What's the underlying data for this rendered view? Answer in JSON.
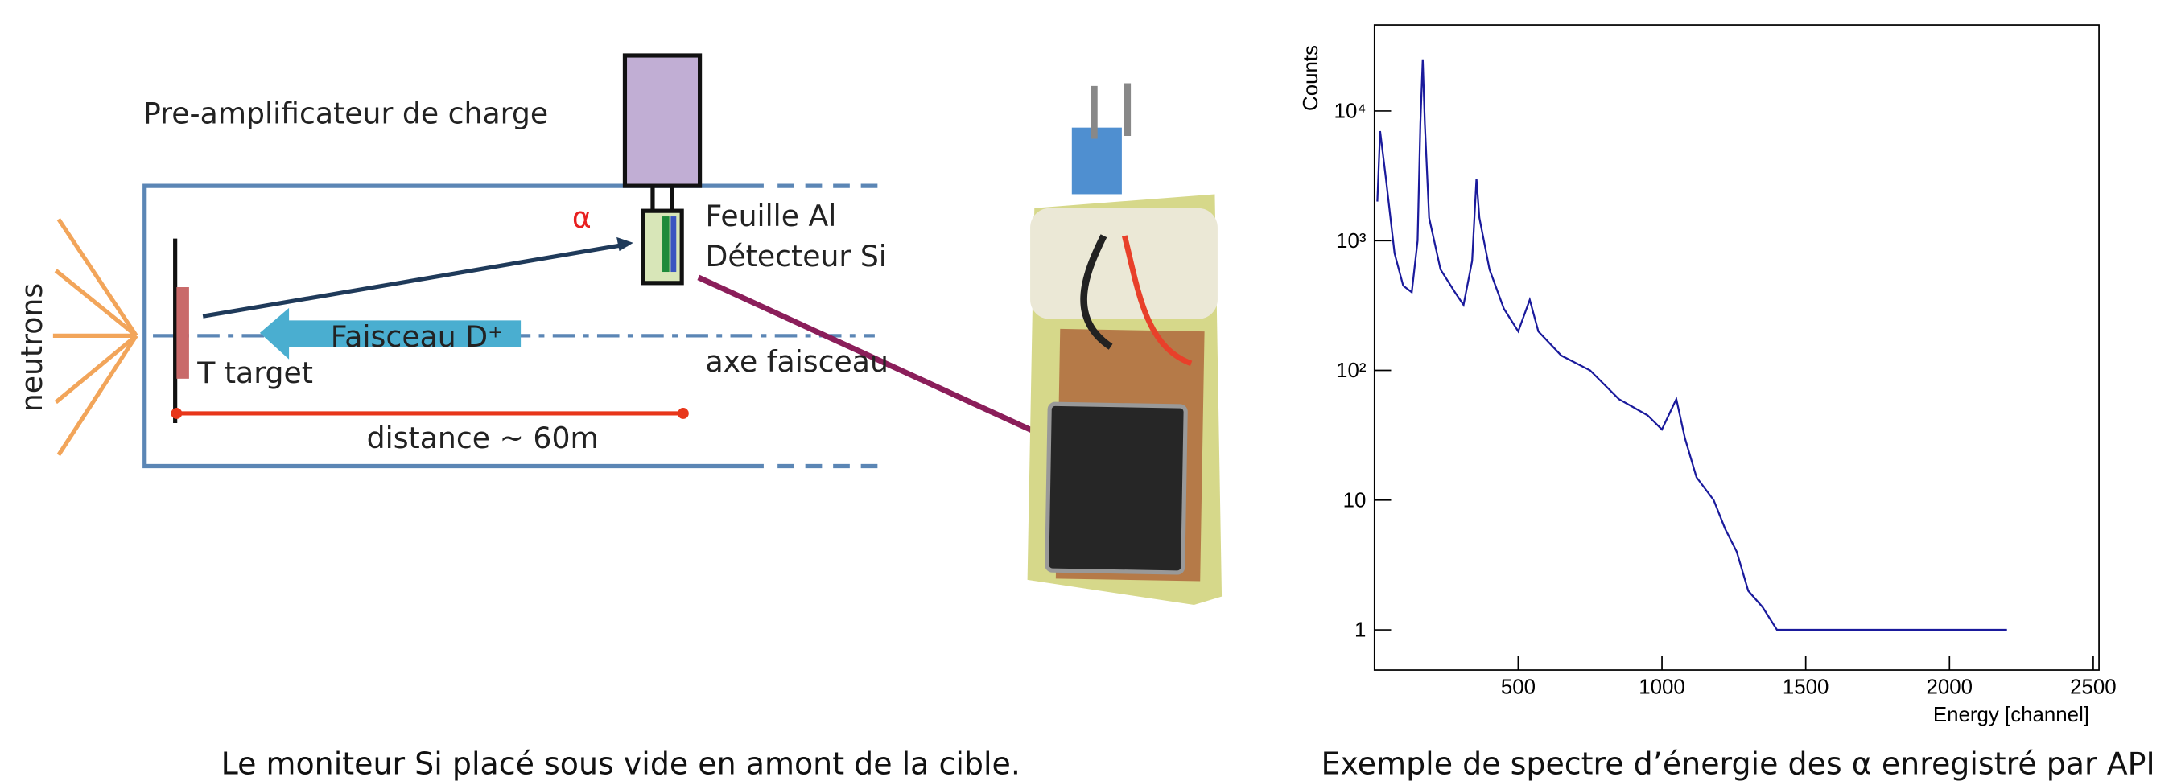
{
  "diagram": {
    "preamp": "Pre-amplificateur de charge",
    "alpha": "α",
    "foil": "Feuille Al",
    "detector": "Détecteur Si",
    "beam": "Faisceau D⁺",
    "axis": "axe faisceau",
    "target": "T target",
    "distance": "distance ~ 60m",
    "neutrons": "neutrons",
    "caption": "Le moniteur Si placé sous vide en amont de la cible."
  },
  "chart_data": {
    "type": "line",
    "x_label": "Energy [channel]",
    "y_label": "Counts",
    "caption": "Exemple de spectre d’énergie des α enregistré par API",
    "log_y": true,
    "color": "#1a1a9c",
    "x": [
      10,
      20,
      40,
      70,
      100,
      130,
      150,
      160,
      168,
      175,
      190,
      230,
      280,
      310,
      340,
      355,
      365,
      400,
      450,
      500,
      540,
      570,
      650,
      750,
      850,
      950,
      1000,
      1050,
      1080,
      1120,
      1180,
      1220,
      1260,
      1300,
      1350,
      1400,
      1600,
      1800,
      2000,
      2200
    ],
    "values": [
      2000,
      7000,
      3000,
      800,
      450,
      400,
      1000,
      8000,
      25000,
      8000,
      1500,
      600,
      400,
      320,
      700,
      3000,
      1500,
      600,
      300,
      200,
      350,
      200,
      130,
      100,
      60,
      45,
      35,
      60,
      30,
      15,
      10,
      6,
      4,
      2,
      1.5,
      1,
      1,
      1,
      1,
      1
    ],
    "xlim": [
      0,
      2520
    ],
    "xticks": [
      500,
      1000,
      1500,
      2000,
      2500
    ],
    "ylim": [
      0.49,
      46000
    ],
    "yticks": [
      1,
      10,
      {
        "value": 100,
        "label": "10²"
      },
      {
        "value": 1000,
        "label": "10³"
      },
      {
        "value": 10000,
        "label": "10⁴"
      }
    ]
  }
}
